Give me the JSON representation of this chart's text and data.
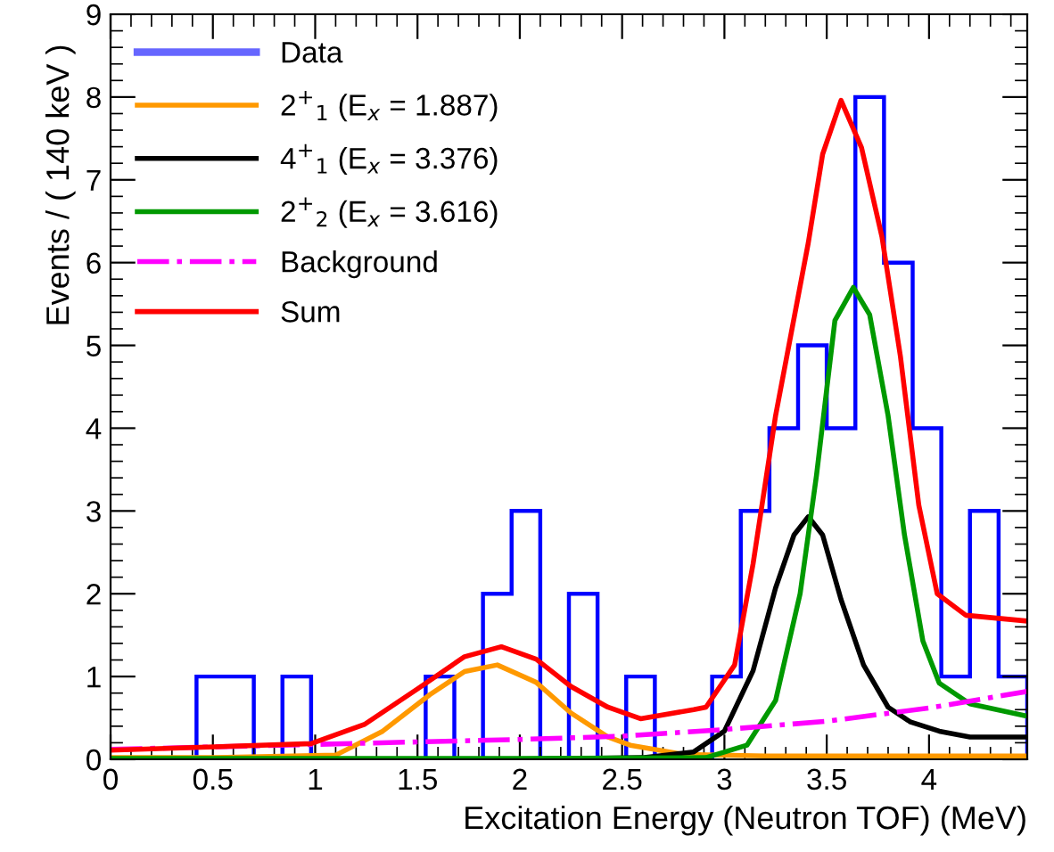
{
  "chart_data": {
    "type": "histogram",
    "xlabel": "Excitation Energy (Neutron TOF) (MeV)",
    "ylabel": "Events / ( 140 keV )",
    "bins": [
      0,
      0.14,
      0.28,
      0.42,
      0.56,
      0.7,
      0.84,
      0.98,
      1.12,
      1.26,
      1.4,
      1.54,
      1.68,
      1.82,
      1.96,
      2.1,
      2.24,
      2.38,
      2.52,
      2.66,
      2.8,
      2.94,
      3.08,
      3.22,
      3.36,
      3.5,
      3.64,
      3.78,
      3.92,
      4.06,
      4.2,
      4.34,
      4.48
    ],
    "series": [
      {
        "name": "Data",
        "color": "#0000ff",
        "values": [
          0,
          0,
          0,
          1,
          1,
          0,
          1,
          0,
          0,
          0,
          0,
          1,
          0,
          2,
          3,
          0,
          2,
          0,
          1,
          0,
          0,
          1,
          3,
          4,
          5,
          4,
          8,
          6,
          4,
          1,
          3,
          1
        ]
      },
      {
        "name": "2$^{+}$$_{1}$ (E$_{x}$ = 1.887)",
        "type": "line",
        "color": "#ff9900",
        "x": [
          0,
          0.5,
          1.1,
          1.33,
          1.56,
          1.73,
          1.89,
          2.08,
          2.25,
          2.43,
          2.54,
          2.8,
          3.2,
          4.48
        ],
        "values": [
          0.02,
          0.02,
          0.05,
          0.34,
          0.78,
          1.06,
          1.14,
          0.93,
          0.56,
          0.27,
          0.17,
          0.06,
          0.04,
          0.04
        ]
      },
      {
        "name": "4$^{+}$$_{1}$ (E$_{x}$ = 3.376)",
        "type": "line",
        "color": "#000000",
        "x": [
          0,
          2.0,
          2.6,
          2.85,
          3.0,
          3.14,
          3.25,
          3.34,
          3.41,
          3.48,
          3.57,
          3.68,
          3.8,
          3.91,
          4.05,
          4.2,
          4.48
        ],
        "values": [
          0.0,
          0.0,
          0.02,
          0.09,
          0.34,
          1.07,
          2.07,
          2.71,
          2.93,
          2.71,
          1.93,
          1.14,
          0.63,
          0.45,
          0.34,
          0.27,
          0.27
        ]
      },
      {
        "name": "2$^{+}$$_{2}$ (E$_{x}$ = 3.616)",
        "type": "line",
        "color": "#009900",
        "x": [
          0,
          2.0,
          2.91,
          3.11,
          3.25,
          3.37,
          3.45,
          3.54,
          3.63,
          3.71,
          3.8,
          3.88,
          3.97,
          4.05,
          4.2,
          4.48
        ],
        "values": [
          0.01,
          0.01,
          0.02,
          0.17,
          0.71,
          2.0,
          3.43,
          5.3,
          5.7,
          5.37,
          4.15,
          2.71,
          1.43,
          0.92,
          0.67,
          0.52
        ]
      },
      {
        "name": "Background",
        "type": "line",
        "line_style": "dashdot",
        "color": "#ff00ff",
        "x": [
          0,
          1,
          2,
          2.5,
          3,
          3.5,
          4,
          4.48
        ],
        "values": [
          0.12,
          0.18,
          0.24,
          0.28,
          0.36,
          0.46,
          0.62,
          0.82
        ]
      },
      {
        "name": "Sum",
        "type": "line",
        "color": "#ff0000",
        "x": [
          0,
          0.98,
          1.24,
          1.5,
          1.73,
          1.91,
          2.08,
          2.25,
          2.43,
          2.59,
          2.85,
          2.91,
          3.05,
          3.14,
          3.25,
          3.41,
          3.48,
          3.57,
          3.67,
          3.77,
          3.86,
          3.95,
          4.04,
          4.18,
          4.48
        ],
        "values": [
          0.11,
          0.19,
          0.42,
          0.85,
          1.24,
          1.36,
          1.21,
          0.88,
          0.63,
          0.49,
          0.6,
          0.63,
          1.14,
          2.36,
          4.15,
          6.24,
          7.31,
          7.96,
          7.39,
          6.31,
          4.87,
          3.07,
          2.0,
          1.74,
          1.67
        ]
      }
    ],
    "xlim": [
      0,
      4.48
    ],
    "ylim": [
      0,
      9
    ],
    "xticks": [
      0,
      0.5,
      1,
      1.5,
      2,
      2.5,
      3,
      3.5,
      4
    ],
    "yticks": [
      0,
      1,
      2,
      3,
      4,
      5,
      6,
      7,
      8,
      9
    ],
    "legend": "top left",
    "grid": false
  }
}
